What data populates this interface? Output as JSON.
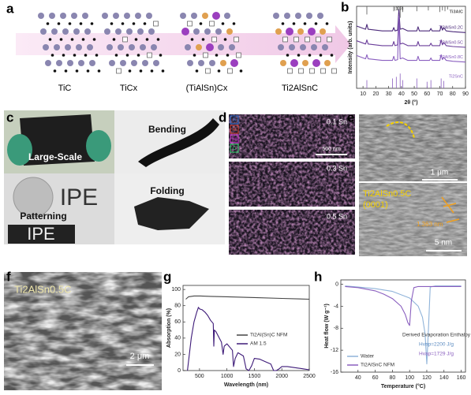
{
  "panel_labels": [
    "a",
    "b",
    "c",
    "d",
    "e",
    "f",
    "g",
    "h"
  ],
  "panel_a": {
    "labels": [
      "TiC",
      "TiCx",
      "(TiAlSn)Cx",
      "Ti2AlSnC"
    ]
  },
  "panel_c": {
    "labels": [
      "Large-Scale",
      "Bending",
      "Patterning",
      "Folding"
    ],
    "logo": "IPE"
  },
  "panel_d": {
    "legend": [
      "Ti",
      "Al",
      "Sn",
      "C"
    ],
    "maps": [
      "0.1 Sn",
      "0.3 Sn",
      "0.5 Sn"
    ],
    "scale_bar": "500 nm"
  },
  "panel_e": {
    "scale_bar_top": "1 μm",
    "phase": "Ti2AlSn0.5C",
    "plane": "(0001)",
    "spacing": "1.363 nm",
    "scale_bar_bottom": "5 nm"
  },
  "panel_f": {
    "phase": "Ti2AlSn0.5C",
    "scale_bar": "2 μm"
  },
  "chart_data": [
    {
      "type": "line",
      "xlabel": "2θ (°)",
      "ylabel": "Intensity (arb. units)",
      "xlim": [
        5,
        90
      ],
      "xticks": [
        10,
        20,
        30,
        40,
        50,
        60,
        70,
        80,
        90
      ],
      "ylim": [
        0,
        10
      ],
      "annotations": [
        "(103)"
      ],
      "x": [
        5,
        12,
        13,
        14,
        25,
        33,
        34,
        35,
        37,
        38,
        39,
        41,
        45,
        52,
        53,
        54,
        62,
        63,
        64,
        70,
        71,
        72,
        73,
        75,
        80,
        90
      ],
      "series": [
        {
          "name": "Ti3AlC",
          "kind": "sticks",
          "anchor": "top",
          "color": "#555555",
          "x": [
            13,
            34,
            37,
            39,
            41,
            52,
            61,
            70,
            72,
            74,
            76
          ],
          "values": [
            9.0,
            9.4,
            9.5,
            8.6,
            9.3,
            9.4,
            9.5,
            9.3,
            9.5,
            9.4,
            9.6
          ]
        },
        {
          "name": "Ti2AlSn0.2C",
          "color": "#4b2a7a",
          "values": [
            7.6,
            7.2,
            7.8,
            7.2,
            7.0,
            7.0,
            7.4,
            7.0,
            7.1,
            9.6,
            7.2,
            7.3,
            7.0,
            7.0,
            7.5,
            7.0,
            7.0,
            7.3,
            7.0,
            7.0,
            7.6,
            7.1,
            7.4,
            7.0,
            6.9,
            6.8
          ]
        },
        {
          "name": "Ti2AlSn0.5C",
          "color": "#6a3d9a",
          "values": [
            5.8,
            5.4,
            5.9,
            5.4,
            5.2,
            5.2,
            5.7,
            5.2,
            5.3,
            9.0,
            5.4,
            5.5,
            5.2,
            5.2,
            5.7,
            5.2,
            5.2,
            5.5,
            5.2,
            5.2,
            5.9,
            5.3,
            5.6,
            5.2,
            5.1,
            5.0
          ]
        },
        {
          "name": "Ti2AlSn0.8C",
          "color": "#8a5fbf",
          "values": [
            4.0,
            3.6,
            4.1,
            3.6,
            3.4,
            3.4,
            3.9,
            3.4,
            3.5,
            8.8,
            3.6,
            3.7,
            3.4,
            3.4,
            3.9,
            3.4,
            3.4,
            3.7,
            3.4,
            3.4,
            4.1,
            3.5,
            3.8,
            3.4,
            3.3,
            3.2
          ]
        },
        {
          "name": "Ti2SnC",
          "kind": "sticks",
          "anchor": "bottom",
          "color": "#8a5fbf",
          "x": [
            13,
            33,
            36,
            39,
            41,
            52,
            60,
            63,
            71,
            73
          ],
          "values": [
            1.0,
            1.2,
            1.4,
            1.8,
            1.0,
            1.2,
            0.8,
            1.0,
            1.2,
            0.9
          ]
        }
      ]
    },
    {
      "type": "line",
      "xlabel": "Wavelength (nm)",
      "ylabel": "Absorption (%)",
      "xlim": [
        200,
        2500
      ],
      "xticks": [
        500,
        1000,
        1500,
        2000,
        2500
      ],
      "ylim": [
        0,
        105
      ],
      "yticks": [
        0,
        20,
        40,
        60,
        80,
        100
      ],
      "series": [
        {
          "name": "Ti2Al(Sn)C NFM",
          "color": "#444444",
          "x": [
            250,
            300,
            400,
            500,
            700,
            1000,
            1500,
            2000,
            2500
          ],
          "values": [
            88,
            91,
            92,
            92,
            91.5,
            91,
            90,
            89,
            88
          ]
        },
        {
          "name": "AM 1.5",
          "color": "#3d1a78",
          "x": [
            280,
            350,
            400,
            450,
            480,
            500,
            550,
            600,
            650,
            700,
            750,
            760,
            770,
            800,
            900,
            930,
            950,
            1000,
            1100,
            1120,
            1150,
            1200,
            1300,
            1350,
            1400,
            1450,
            1500,
            1600,
            1700,
            1800,
            1850,
            1900,
            1950,
            2000,
            2100,
            2200,
            2300,
            2400,
            2500
          ],
          "values": [
            0,
            40,
            60,
            72,
            78,
            76,
            75,
            72,
            68,
            62,
            58,
            30,
            50,
            48,
            35,
            20,
            30,
            33,
            25,
            5,
            15,
            22,
            18,
            2,
            0,
            6,
            15,
            14,
            11,
            8,
            0,
            0,
            2,
            5,
            5,
            4,
            3,
            2,
            1
          ]
        }
      ]
    },
    {
      "type": "line",
      "xlabel": "Temperature (°C)",
      "ylabel": "Heat flow (W g⁻¹)",
      "xlim": [
        20,
        165
      ],
      "xticks": [
        40,
        60,
        80,
        100,
        120,
        140,
        160
      ],
      "ylim": [
        -16,
        0.8
      ],
      "yticks": [
        0,
        -4,
        -8,
        -12,
        -16
      ],
      "annotations": [
        "Derived Evaporation Enthalpy",
        "Hvap=2200 J/g",
        "Hvap=1729 J/g"
      ],
      "series": [
        {
          "name": "Water",
          "color": "#8fb3d9",
          "x": [
            25,
            40,
            60,
            80,
            100,
            110,
            115,
            118,
            120,
            122,
            124,
            130,
            160
          ],
          "values": [
            -0.3,
            -0.5,
            -0.8,
            -1.3,
            -2.5,
            -4,
            -6,
            -9,
            -14.5,
            -8,
            -0.5,
            -0.3,
            -0.3
          ]
        },
        {
          "name": "Ti2AlSnC NFM",
          "color": "#8a5fbf",
          "x": [
            25,
            40,
            60,
            70,
            80,
            90,
            95,
            98,
            100,
            102,
            105,
            110,
            160
          ],
          "values": [
            -0.4,
            -0.6,
            -1.2,
            -1.8,
            -2.6,
            -4,
            -5.5,
            -7,
            -7.5,
            -3,
            -0.6,
            -0.4,
            -0.4
          ]
        }
      ]
    }
  ]
}
